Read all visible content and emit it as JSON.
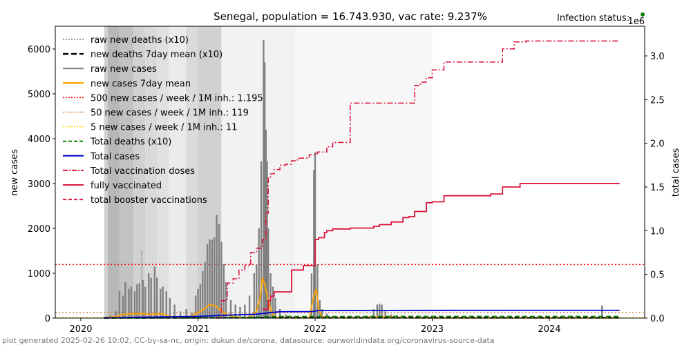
{
  "chart_data": {
    "type": "line",
    "title": "Senegal, population = 16.743.930, vac rate: 9.237%",
    "status_label": "Infection status:",
    "status_color": "#008000",
    "right_axis_multiplier": "1e6",
    "xlabel": "",
    "ylabel_left": "new cases",
    "ylabel_right": "total cases",
    "x_range": [
      2019.85,
      2024.95
    ],
    "ylim_left": [
      0,
      6500
    ],
    "ylim_right": [
      0,
      3.35
    ],
    "x_ticks": [
      2020,
      2021,
      2022,
      2023,
      2024
    ],
    "x_tick_labels": [
      "2020",
      "2021",
      "2022",
      "2023",
      "2024"
    ],
    "y_ticks_left": [
      0,
      1000,
      2000,
      3000,
      4000,
      5000,
      6000
    ],
    "y_tick_labels_left": [
      "0",
      "1000",
      "2000",
      "3000",
      "4000",
      "5000",
      "6000"
    ],
    "y_ticks_right": [
      0.0,
      0.5,
      1.0,
      1.5,
      2.0,
      2.5,
      3.0
    ],
    "y_tick_labels_right": [
      "0.0",
      "0.5",
      "1.0",
      "1.5",
      "2.0",
      "2.5",
      "3.0"
    ],
    "footer": "plot generated 2025-02-26 10:02, CC-by-sa-nc, origin: dukun.de/corona, datasource: ourworldindata.org/coronavirus-source-data",
    "legend_position": "upper-left",
    "legend": [
      {
        "label": "raw new deaths (x10)",
        "color": "#808080",
        "style": "dotted"
      },
      {
        "label": "new deaths 7day mean (x10)",
        "color": "#000000",
        "style": "dashed-bold"
      },
      {
        "label": "raw new cases",
        "color": "#808080",
        "style": "solid"
      },
      {
        "label": "new cases 7day mean",
        "color": "#ffa500",
        "style": "solid-bold"
      },
      {
        "label": "500 new cases / week / 1M inh.: 1.195",
        "color": "#ff0000",
        "style": "dotted"
      },
      {
        "label": "50 new cases / week / 1M inh.: 119",
        "color": "#d2803a",
        "style": "dotted"
      },
      {
        "label": "5 new cases / week / 1M inh.: 11",
        "color": "#ffd700",
        "style": "dotted"
      },
      {
        "label": "Total deaths (x10)",
        "color": "#008000",
        "style": "dashed"
      },
      {
        "label": "Total cases",
        "color": "#0000cd",
        "style": "solid"
      },
      {
        "label": "Total vaccination doses",
        "color": "#dc143c",
        "style": "dashdot"
      },
      {
        "label": "fully vaccinated",
        "color": "#dc143c",
        "style": "solid"
      },
      {
        "label": "total booster vaccinations",
        "color": "#dc143c",
        "style": "dashed"
      }
    ],
    "threshold_lines": [
      {
        "name": "500-per-week",
        "value": 1195,
        "color": "#ff0000"
      },
      {
        "name": "50-per-week",
        "value": 119,
        "color": "#d2803a"
      },
      {
        "name": "5-per-week",
        "value": 11,
        "color": "#ffd700"
      }
    ],
    "background_bands": [
      {
        "x0": 2020.2,
        "x1": 2020.23,
        "shade": 0.82
      },
      {
        "x0": 2020.23,
        "x1": 2020.33,
        "shade": 0.72
      },
      {
        "x0": 2020.33,
        "x1": 2020.45,
        "shade": 0.76
      },
      {
        "x0": 2020.45,
        "x1": 2020.55,
        "shade": 0.82
      },
      {
        "x0": 2020.55,
        "x1": 2020.65,
        "shade": 0.85
      },
      {
        "x0": 2020.65,
        "x1": 2020.75,
        "shade": 0.88
      },
      {
        "x0": 2020.75,
        "x1": 2020.9,
        "shade": 0.92
      },
      {
        "x0": 2020.9,
        "x1": 2021.0,
        "shade": 0.86
      },
      {
        "x0": 2021.0,
        "x1": 2021.2,
        "shade": 0.82
      },
      {
        "x0": 2021.2,
        "x1": 2021.45,
        "shade": 0.95
      },
      {
        "x0": 2021.45,
        "x1": 2021.83,
        "shade": 0.95
      },
      {
        "x0": 2021.83,
        "x1": 2023.0,
        "shade": 0.97
      }
    ],
    "raw_new_cases": {
      "x": [
        2020.2,
        2020.25,
        2020.3,
        2020.33,
        2020.36,
        2020.38,
        2020.41,
        2020.43,
        2020.46,
        2020.48,
        2020.5,
        2020.53,
        2020.55,
        2020.58,
        2020.6,
        2020.63,
        2020.65,
        2020.68,
        2020.7,
        2020.73,
        2020.76,
        2020.8,
        2020.85,
        2020.9,
        2020.95,
        2020.98,
        2021.0,
        2021.02,
        2021.04,
        2021.06,
        2021.08,
        2021.1,
        2021.12,
        2021.14,
        2021.16,
        2021.18,
        2021.2,
        2021.22,
        2021.24,
        2021.28,
        2021.32,
        2021.36,
        2021.4,
        2021.44,
        2021.48,
        2021.5,
        2021.52,
        2021.54,
        2021.56,
        2021.57,
        2021.58,
        2021.59,
        2021.6,
        2021.62,
        2021.64,
        2021.66,
        2021.7,
        2021.75,
        2021.8,
        2021.9,
        2021.97,
        2021.99,
        2022.0,
        2022.02,
        2022.04,
        2022.06,
        2022.1,
        2022.15,
        2022.3,
        2022.5,
        2022.53,
        2022.55,
        2022.57,
        2022.6,
        2022.65,
        2022.7,
        2022.8,
        2023.0,
        2023.5,
        2024.0,
        2024.45,
        2024.5
      ],
      "y": [
        30,
        60,
        150,
        600,
        500,
        800,
        650,
        700,
        600,
        750,
        780,
        850,
        700,
        1000,
        900,
        1150,
        900,
        650,
        700,
        600,
        450,
        300,
        150,
        200,
        120,
        500,
        650,
        750,
        1050,
        1250,
        1650,
        1750,
        1750,
        1800,
        2300,
        2100,
        1700,
        1200,
        800,
        400,
        300,
        250,
        300,
        500,
        1000,
        1200,
        2000,
        3500,
        6200,
        5700,
        4200,
        3500,
        2000,
        1000,
        700,
        450,
        200,
        80,
        30,
        20,
        1000,
        3300,
        3700,
        1200,
        400,
        200,
        100,
        40,
        30,
        200,
        300,
        320,
        300,
        150,
        80,
        60,
        30,
        20,
        15,
        10,
        280,
        10
      ]
    },
    "raw_new_deaths_x10": {
      "x": [
        2020.3,
        2020.5,
        2020.52,
        2020.6,
        2020.7,
        2021.0,
        2021.1,
        2021.5,
        2021.6,
        2022.0,
        2022.1
      ],
      "y": [
        20,
        150,
        1500,
        200,
        100,
        120,
        150,
        200,
        250,
        100,
        50
      ]
    },
    "new_cases_7day_mean": {
      "x": [
        2020.2,
        2020.3,
        2020.35,
        2020.4,
        2020.5,
        2020.6,
        2020.7,
        2020.75,
        2020.8,
        2020.9,
        2020.95,
        2021.0,
        2021.05,
        2021.1,
        2021.15,
        2021.2,
        2021.25,
        2021.3,
        2021.4,
        2021.45,
        2021.5,
        2021.53,
        2021.55,
        2021.57,
        2021.6,
        2021.63,
        2021.66,
        2021.7,
        2021.8,
        2021.95,
        2021.99,
        2022.01,
        2022.03,
        2022.06,
        2022.1,
        2022.3,
        2022.55,
        2022.6,
        2022.8,
        2023.0,
        2024.6
      ],
      "y": [
        10,
        30,
        80,
        90,
        100,
        80,
        100,
        40,
        20,
        30,
        50,
        120,
        200,
        300,
        270,
        150,
        80,
        30,
        10,
        30,
        150,
        450,
        900,
        750,
        400,
        120,
        20,
        5,
        5,
        5,
        500,
        650,
        200,
        30,
        10,
        5,
        30,
        30,
        5,
        3,
        3
      ]
    },
    "new_deaths_7day_mean_x10": {
      "x": [
        2020.2,
        2024.6
      ],
      "y": [
        5,
        5
      ]
    },
    "total_cases_millions": {
      "x": [
        2020.2,
        2020.5,
        2020.8,
        2021.0,
        2021.2,
        2021.4,
        2021.5,
        2021.6,
        2021.7,
        2021.9,
        2021.98,
        2022.02,
        2022.1,
        2022.5,
        2022.6,
        2024.6
      ],
      "y": [
        0.0,
        0.01,
        0.016,
        0.02,
        0.031,
        0.04,
        0.045,
        0.06,
        0.073,
        0.074,
        0.075,
        0.085,
        0.086,
        0.087,
        0.088,
        0.089
      ]
    },
    "total_deaths_x10_millions": {
      "x": [
        2020.2,
        2021.0,
        2021.5,
        2021.7,
        2024.6
      ],
      "y": [
        0.0,
        0.003,
        0.01,
        0.018,
        0.019
      ]
    },
    "total_vaccination_doses_millions": {
      "x": [
        2021.15,
        2021.2,
        2021.25,
        2021.3,
        2021.35,
        2021.4,
        2021.45,
        2021.5,
        2021.55,
        2021.58,
        2021.6,
        2021.62,
        2021.65,
        2021.7,
        2021.75,
        2021.8,
        2021.85,
        2021.9,
        2021.95,
        2022.0,
        2022.02,
        2022.05,
        2022.1,
        2022.15,
        2022.2,
        2022.25,
        2022.3,
        2022.35,
        2022.5,
        2022.8,
        2022.85,
        2022.9,
        2022.95,
        2023.0,
        2023.1,
        2023.3,
        2023.55,
        2023.6,
        2023.7,
        2023.8,
        2024.6
      ],
      "y": [
        0.0,
        0.2,
        0.4,
        0.45,
        0.55,
        0.6,
        0.75,
        0.8,
        0.9,
        1.2,
        1.6,
        1.65,
        1.7,
        1.75,
        1.76,
        1.8,
        1.83,
        1.83,
        1.87,
        1.88,
        1.9,
        1.9,
        1.96,
        2.01,
        2.01,
        2.01,
        2.46,
        2.46,
        2.46,
        2.46,
        2.66,
        2.7,
        2.75,
        2.84,
        2.93,
        2.93,
        2.93,
        3.08,
        3.16,
        3.17,
        3.17
      ]
    },
    "fully_vaccinated_millions": {
      "x": [
        2021.55,
        2021.6,
        2021.62,
        2021.65,
        2021.75,
        2021.8,
        2021.9,
        2021.95,
        2022.0,
        2022.03,
        2022.08,
        2022.1,
        2022.15,
        2022.3,
        2022.5,
        2022.55,
        2022.65,
        2022.75,
        2022.8,
        2022.85,
        2022.95,
        2023.0,
        2023.1,
        2023.5,
        2023.6,
        2023.75,
        2024.6
      ],
      "y": [
        0.1,
        0.2,
        0.25,
        0.3,
        0.3,
        0.55,
        0.6,
        0.6,
        0.9,
        0.92,
        0.98,
        1.0,
        1.02,
        1.03,
        1.05,
        1.07,
        1.1,
        1.15,
        1.16,
        1.22,
        1.32,
        1.33,
        1.4,
        1.42,
        1.5,
        1.54,
        1.54
      ]
    },
    "total_booster_vaccinations_millions": {
      "x": [],
      "y": []
    }
  }
}
